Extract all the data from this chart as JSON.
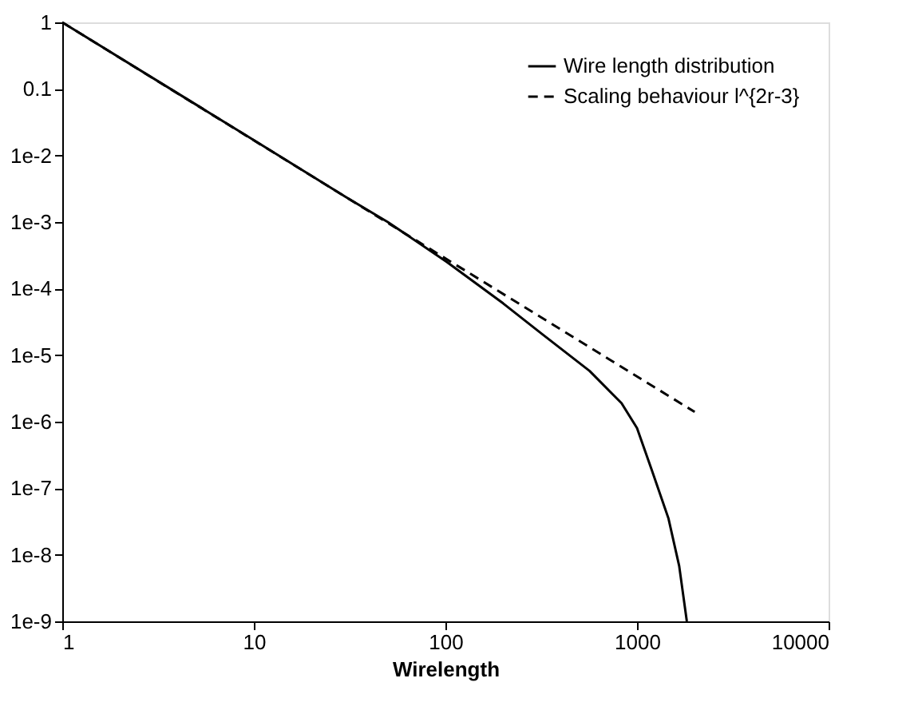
{
  "chart_data": {
    "type": "line",
    "xlabel": "Wirelength",
    "log": "xy",
    "grid": false,
    "legend": "top right",
    "marker": "none",
    "xlim": [
      1,
      10000
    ],
    "xticks": [
      1,
      10,
      100,
      1000,
      10000
    ],
    "ylim": [
      1e-09,
      1
    ],
    "yticks": [
      1,
      0.1,
      {
        "value": 0.01,
        "label": "1e-2"
      },
      {
        "value": 0.001,
        "label": "1e-3"
      },
      {
        "value": 0.0001,
        "label": "1e-4"
      },
      {
        "value": 1e-05,
        "label": "1e-5"
      },
      {
        "value": 1e-06,
        "label": "1e-6"
      },
      {
        "value": 1e-07,
        "label": "1e-7"
      },
      {
        "value": 1e-08,
        "label": "1e-8"
      },
      {
        "value": 1e-09,
        "label": "1e-9"
      }
    ],
    "series": [
      {
        "name": "Wire length distribution",
        "color": "#000000",
        "line_style": "solid",
        "x": [
          1,
          10,
          30,
          50,
          102,
          200,
          318,
          565,
          830,
          1000,
          1200,
          1460,
          1660,
          1820
        ],
        "values": [
          1,
          0.017,
          0.0024,
          0.001,
          0.00025,
          6e-05,
          2.1e-05,
          5.8e-06,
          1.9e-06,
          8e-07,
          1.8e-07,
          3.5e-08,
          6.8e-09,
          1e-09
        ]
      },
      {
        "name": "Scaling behaviour l^{2r-3}",
        "color": "#000000",
        "line_style": "dashed",
        "x": [
          1,
          2000
        ],
        "values": [
          1,
          1.4e-06
        ]
      }
    ]
  }
}
